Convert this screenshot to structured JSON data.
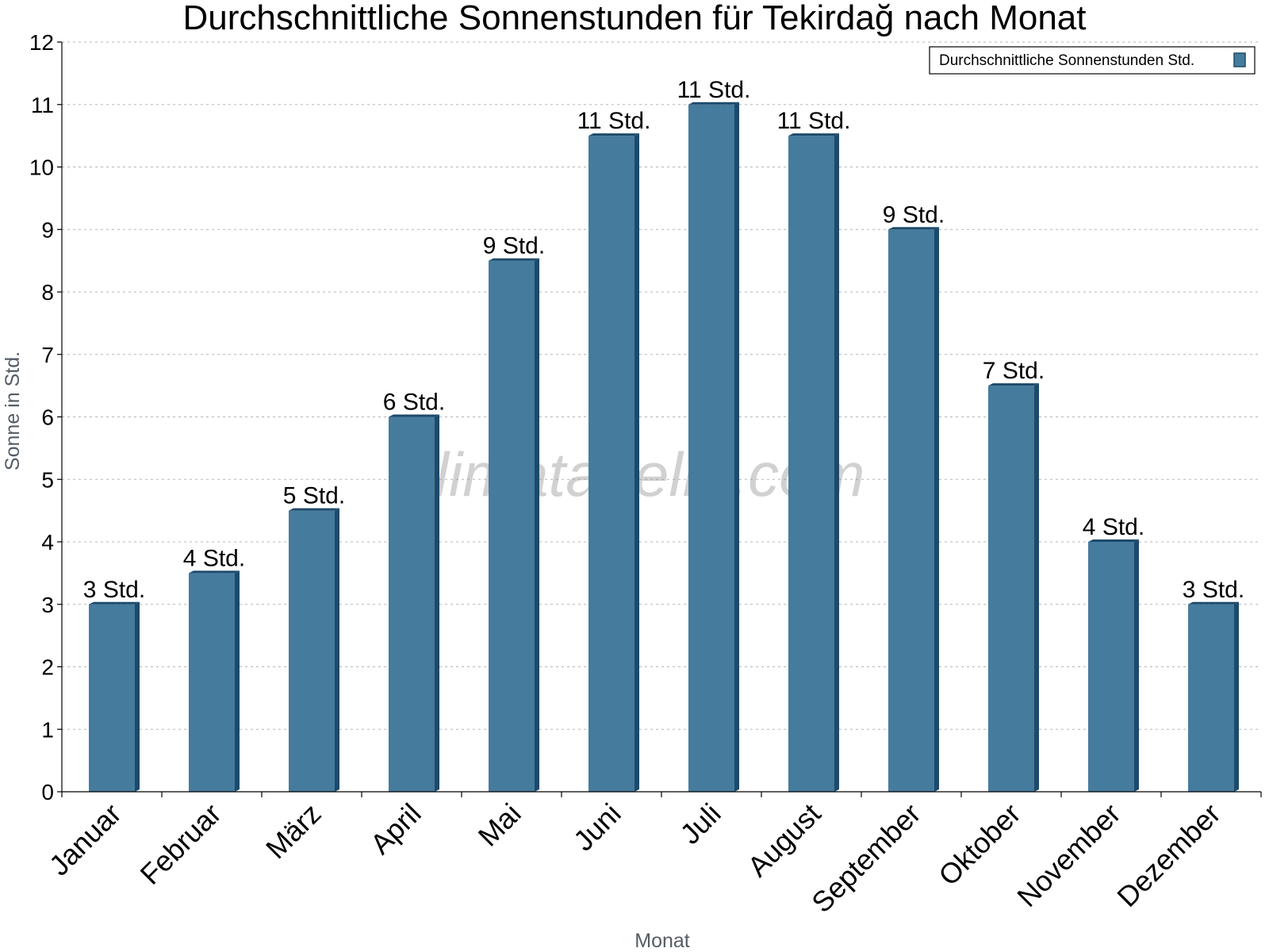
{
  "chart_data": {
    "type": "bar",
    "title": "Durchschnittliche Sonnenstunden für Tekirdağ nach Monat",
    "xlabel": "Monat",
    "ylabel": "Sonne in Std.",
    "ylim": [
      0,
      12
    ],
    "yticks": [
      "0",
      "1",
      "2",
      "3",
      "4",
      "5",
      "6",
      "7",
      "8",
      "9",
      "10",
      "11",
      "12"
    ],
    "grid": true,
    "legend_position": "top-right",
    "categories": [
      "Januar",
      "Februar",
      "März",
      "April",
      "Mai",
      "Juni",
      "Juli",
      "August",
      "September",
      "Oktober",
      "November",
      "Dezember"
    ],
    "series": [
      {
        "name": "Durchschnittliche Sonnenstunden Std.",
        "values": [
          3,
          3.5,
          4.5,
          6,
          8.5,
          10.5,
          11,
          10.5,
          9,
          6.5,
          4,
          3
        ],
        "labels": [
          "3 Std.",
          "4 Std.",
          "5 Std.",
          "6 Std.",
          "9 Std.",
          "11 Std.",
          "11 Std.",
          "11 Std.",
          "9 Std.",
          "7 Std.",
          "4 Std.",
          "3 Std."
        ],
        "color": "#457b9d",
        "color_dark": "#1d4a6b"
      }
    ],
    "watermark": "klimatabelle.com"
  }
}
